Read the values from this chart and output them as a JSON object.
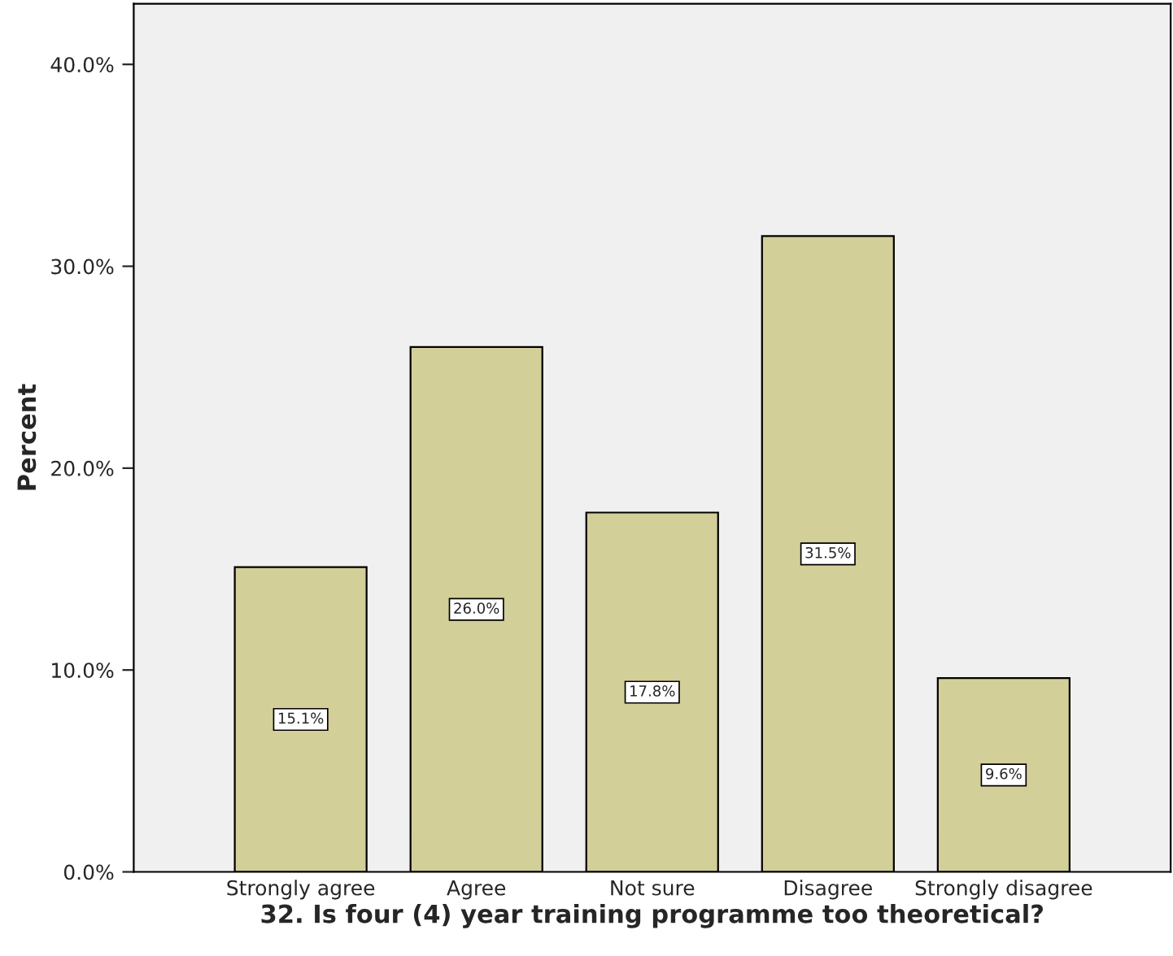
{
  "chart_data": {
    "type": "bar",
    "categories": [
      "Strongly agree",
      "Agree",
      "Not sure",
      "Disagree",
      "Strongly disagree"
    ],
    "values": [
      15.1,
      26.0,
      17.8,
      31.5,
      9.6
    ],
    "value_labels": [
      "15.1%",
      "26.0%",
      "17.8%",
      "31.5%",
      "9.6%"
    ],
    "color": "#d2cf98",
    "xlabel": "32. Is four (4) year training programme too theoretical?",
    "ylabel": "Percent",
    "ylim": [
      0,
      43
    ],
    "yticks": [
      {
        "value": 0,
        "label": "0.0%"
      },
      {
        "value": 10,
        "label": "10.0%"
      },
      {
        "value": 20,
        "label": "20.0%"
      },
      {
        "value": 30,
        "label": "30.0%"
      },
      {
        "value": 40,
        "label": "40.0%"
      }
    ],
    "grid": false
  }
}
